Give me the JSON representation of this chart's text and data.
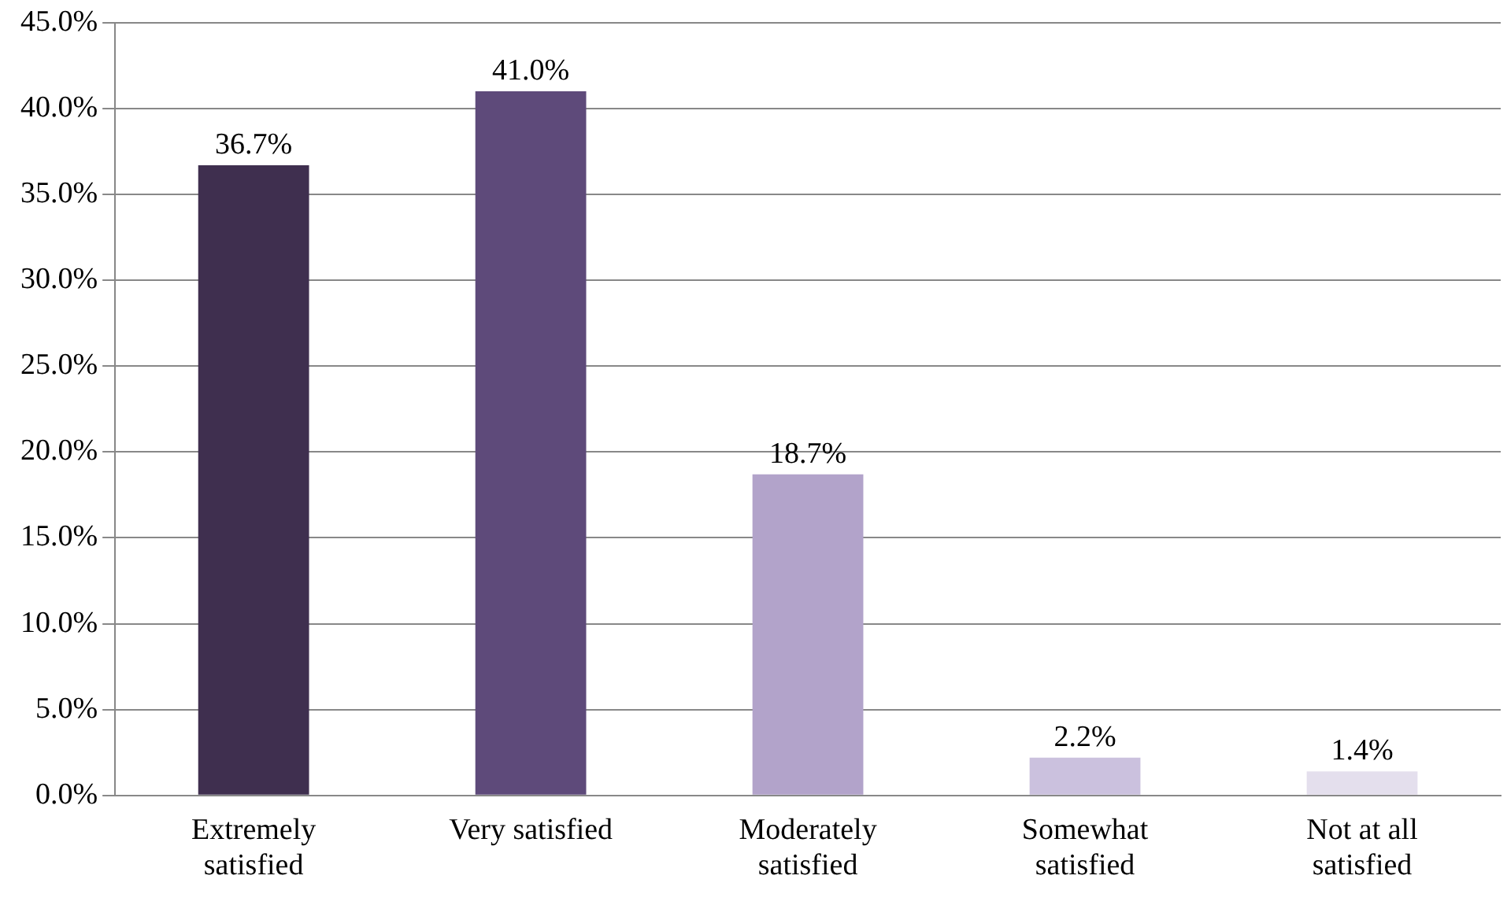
{
  "chart_data": {
    "type": "bar",
    "categories": [
      "Extremely satisfied",
      "Very satisfied",
      "Moderately satisfied",
      "Somewhat satisfied",
      "Not at all satisfied"
    ],
    "values": [
      36.7,
      41.0,
      18.7,
      2.2,
      1.4
    ],
    "value_labels": [
      "36.7%",
      "41.0%",
      "18.7%",
      "2.2%",
      "1.4%"
    ],
    "colors": [
      "#3f2f4f",
      "#5e4a7a",
      "#b2a3ca",
      "#cbc1de",
      "#e4dfed"
    ],
    "ylim": [
      0,
      45
    ],
    "yticks": [
      {
        "value": 0,
        "label": "0.0%"
      },
      {
        "value": 5,
        "label": "5.0%"
      },
      {
        "value": 10,
        "label": "10.0%"
      },
      {
        "value": 15,
        "label": "15.0%"
      },
      {
        "value": 20,
        "label": "20.0%"
      },
      {
        "value": 25,
        "label": "25.0%"
      },
      {
        "value": 30,
        "label": "30.0%"
      },
      {
        "value": 35,
        "label": "35.0%"
      },
      {
        "value": 40,
        "label": "40.0%"
      },
      {
        "value": 45,
        "label": "45.0%"
      }
    ],
    "grid": "y",
    "legend": false
  }
}
